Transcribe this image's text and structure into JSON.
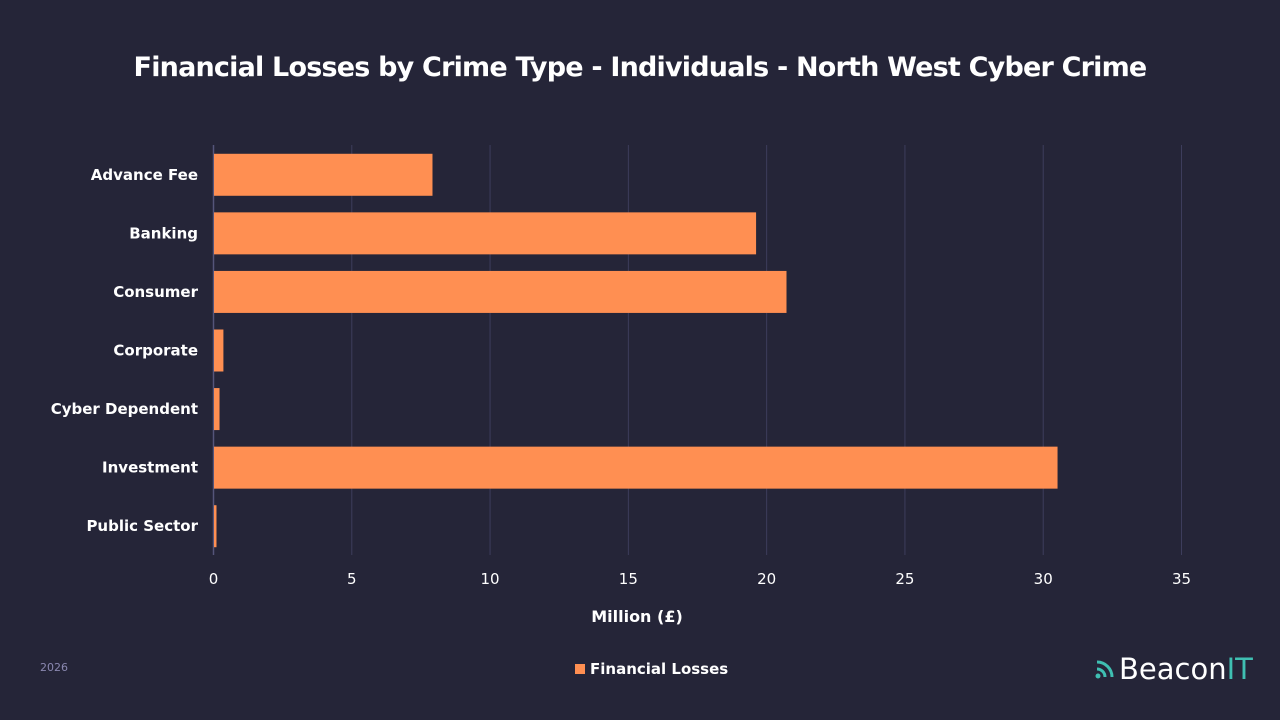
{
  "chart_data": {
    "type": "bar",
    "orientation": "horizontal",
    "title": "Financial Losses by Crime Type - Individuals - North West Cyber Crime",
    "xlabel": "Million (£)",
    "ylabel": "",
    "categories": [
      "Advance Fee",
      "Banking",
      "Consumer",
      "Corporate",
      "Cyber Dependent",
      "Investment",
      "Public Sector"
    ],
    "series": [
      {
        "name": "Financial Losses",
        "values": [
          7.9,
          19.6,
          20.7,
          0.34,
          0.2,
          30.5,
          0.09
        ],
        "color": "#ff8f52"
      }
    ],
    "xlim": [
      0,
      35
    ],
    "xticks": [
      0,
      5,
      10,
      15,
      20,
      25,
      30,
      35
    ],
    "grid": "vertical",
    "legend": "bottom"
  },
  "footer": {
    "year": "2026",
    "logo_main": "Beacon",
    "logo_accent": "IT"
  },
  "colors": {
    "background": "#252538",
    "bar": "#ff8f52",
    "grid": "#3d3d5c",
    "accent": "#3fbfb2"
  }
}
